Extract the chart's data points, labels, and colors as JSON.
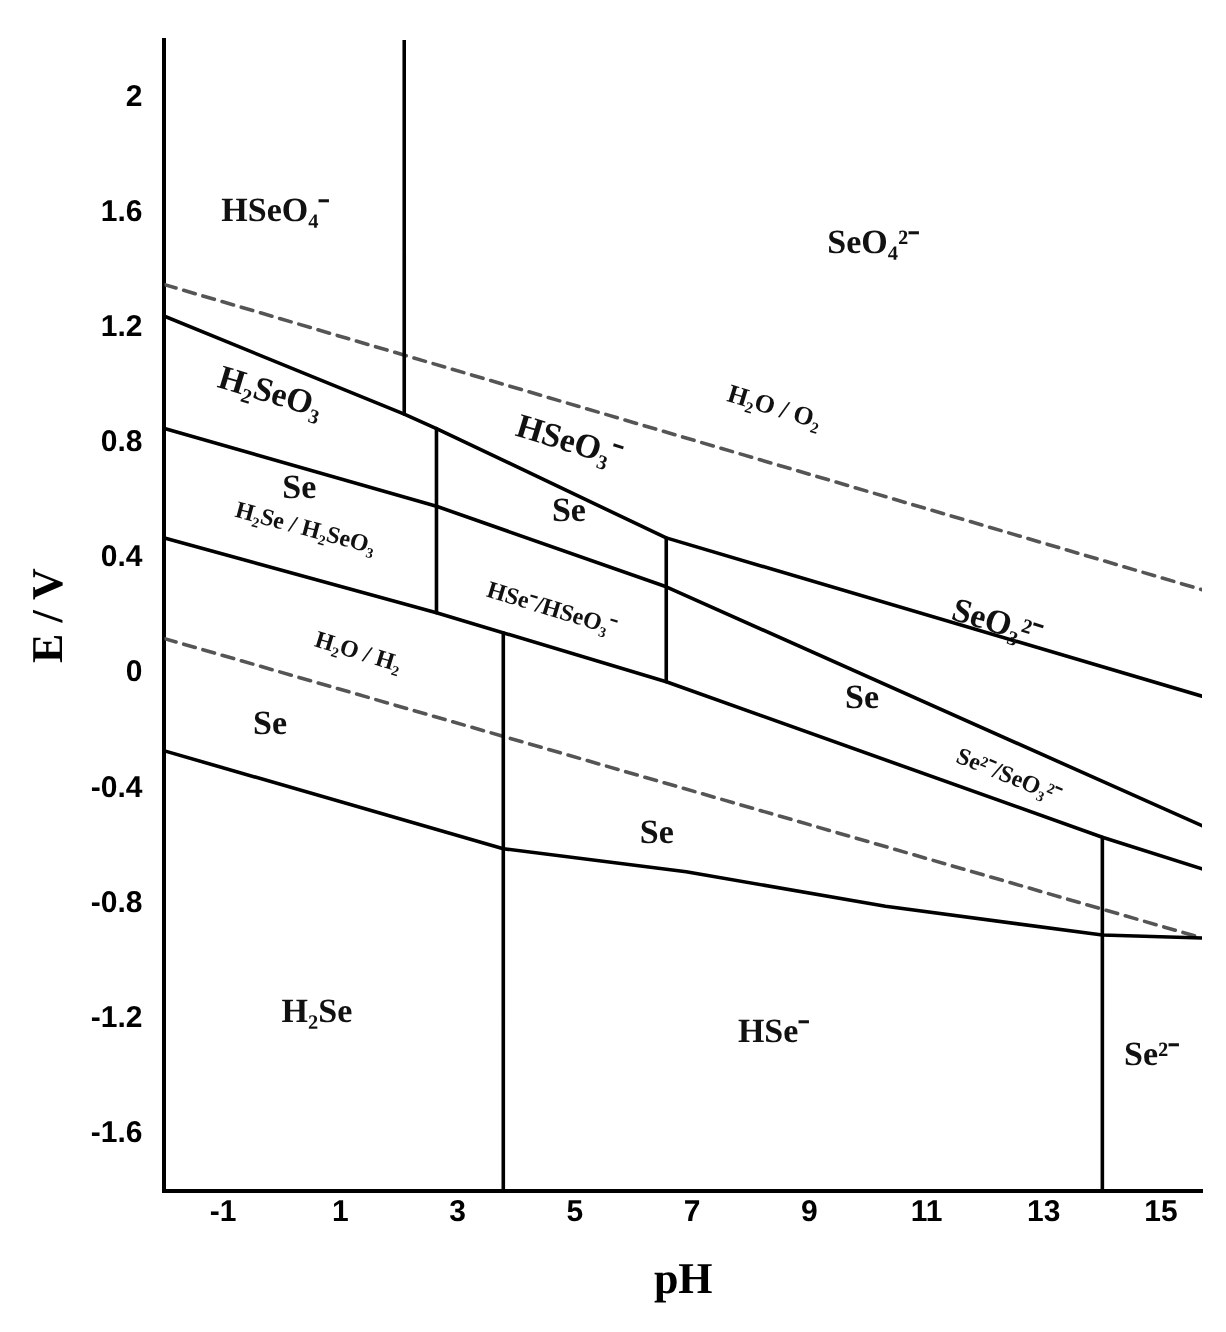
{
  "chart_data": {
    "type": "line",
    "xlabel": "pH",
    "ylabel": "E / V",
    "xlim": [
      -2,
      15.7
    ],
    "ylim": [
      -1.8,
      2.2
    ],
    "xticks": [
      -1,
      1,
      3,
      5,
      7,
      9,
      11,
      13,
      15
    ],
    "yticks": [
      -1.6,
      -1.2,
      -0.8,
      -0.4,
      0,
      0.4,
      0.8,
      1.2,
      1.6,
      2.0
    ],
    "grid": false,
    "legend": false,
    "marker": "none",
    "series": [
      {
        "type": "line",
        "color": "#000000",
        "line_style": "solid",
        "x": [
          -2,
          2.09,
          2.64,
          6.56,
          15.7
        ],
        "values": [
          1.24,
          0.9,
          0.85,
          0.47,
          -0.08
        ]
      },
      {
        "type": "line",
        "color": "#000000",
        "line_style": "solid",
        "x": [
          2.09,
          2.09
        ],
        "values": [
          2.2,
          0.9
        ]
      },
      {
        "type": "line",
        "color": "#000000",
        "line_style": "solid",
        "x": [
          -2,
          2.64,
          6.56,
          15.7
        ],
        "values": [
          0.85,
          0.58,
          0.3,
          -0.53
        ]
      },
      {
        "type": "line",
        "color": "#000000",
        "line_style": "solid",
        "x": [
          -2,
          2.64,
          6.56,
          14.0,
          15.7
        ],
        "values": [
          0.47,
          0.21,
          -0.03,
          -0.57,
          -0.68
        ]
      },
      {
        "type": "line",
        "color": "#000000",
        "line_style": "solid",
        "x": [
          2.64,
          2.64
        ],
        "values": [
          0.85,
          0.21
        ]
      },
      {
        "type": "line",
        "color": "#000000",
        "line_style": "solid",
        "x": [
          6.56,
          6.56
        ],
        "values": [
          0.47,
          -0.03
        ]
      },
      {
        "type": "line",
        "color": "#000000",
        "line_style": "solid",
        "x": [
          3.78,
          3.78
        ],
        "values": [
          0.14,
          -1.8
        ]
      },
      {
        "type": "line",
        "color": "#000000",
        "line_style": "solid",
        "x": [
          14.0,
          14.0
        ],
        "values": [
          -0.57,
          -1.8
        ]
      },
      {
        "type": "line",
        "color": "#000000",
        "line_style": "solid",
        "x": [
          -2,
          3.78,
          6.9,
          10.3,
          14.0,
          15.7
        ],
        "values": [
          -0.27,
          -0.61,
          -0.69,
          -0.81,
          -0.91,
          -0.92
        ]
      },
      {
        "type": "line",
        "color": "#555555",
        "line_style": "dashed",
        "x": [
          -2,
          15.7
        ],
        "values": [
          1.35,
          0.29
        ]
      },
      {
        "type": "line",
        "color": "#555555",
        "line_style": "dashed",
        "x": [
          -2,
          15.7
        ],
        "values": [
          0.12,
          -0.92
        ]
      }
    ],
    "annotations": [
      "HSeO₄⁻",
      "SeO₄²⁻",
      "H₂O / O₂",
      "H₂SeO₃",
      "Se",
      "H₂Se / H₂SeO₃",
      "HSeO₃⁻",
      "Se",
      "HSe⁻/HSeO₃⁻",
      "SeO₃²⁻",
      "Se",
      "Se²⁻/SeO₃²⁻",
      "H₂O / H₂",
      "Se",
      "Se",
      "H₂Se",
      "HSe⁻",
      "Se²⁻"
    ]
  }
}
